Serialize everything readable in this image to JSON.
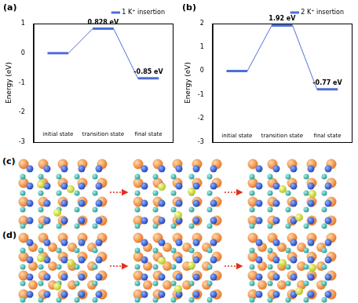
{
  "chart_data": [
    {
      "type": "line",
      "title": "(a)",
      "y_label": "Energy (eV)",
      "x": [
        0.4,
        1.0,
        1.7,
        2.3,
        3.0,
        3.6
      ],
      "series": [
        {
          "name": "1 K⁺ insertion",
          "color": "#4f6fd6",
          "values": [
            0,
            0,
            0.828,
            0.828,
            -0.85,
            -0.85
          ]
        }
      ],
      "xlim": [
        0,
        4
      ],
      "ylim": [
        -3,
        1
      ],
      "yticks": [
        -3,
        -2,
        -1,
        0,
        1
      ],
      "grid": false,
      "legend": "top right",
      "tick_labels": "y",
      "annotations": [
        {
          "text": "0.828 eV",
          "x": 2.0,
          "y": 0.828
        },
        {
          "text": "-0.85 eV",
          "x": 3.3,
          "y": -0.85
        },
        {
          "text": "initial state",
          "x": 0.7,
          "y": -2.75
        },
        {
          "text": "transition state",
          "x": 2.0,
          "y": -2.75
        },
        {
          "text": "final state",
          "x": 3.3,
          "y": -2.75
        }
      ]
    },
    {
      "type": "line",
      "title": "(b)",
      "y_label": "Energy (eV)",
      "x": [
        0.4,
        1.0,
        1.7,
        2.3,
        3.0,
        3.6
      ],
      "series": [
        {
          "name": "2 K⁺ insertion",
          "color": "#4f6fd6",
          "values": [
            0,
            0,
            1.92,
            1.92,
            -0.77,
            -0.77
          ]
        }
      ],
      "xlim": [
        0,
        4
      ],
      "ylim": [
        -3,
        2
      ],
      "yticks": [
        -3,
        -2,
        -1,
        0,
        1,
        2
      ],
      "grid": false,
      "legend": "top right",
      "tick_labels": "y",
      "annotations": [
        {
          "text": "1.92 eV",
          "x": 2.0,
          "y": 1.92
        },
        {
          "text": "-0.77 eV",
          "x": 3.3,
          "y": -0.77
        },
        {
          "text": "initial state",
          "x": 0.7,
          "y": -2.75
        },
        {
          "text": "transition state",
          "x": 2.0,
          "y": -2.75
        },
        {
          "text": "final state",
          "x": 3.3,
          "y": -2.75
        }
      ]
    }
  ],
  "panels": [
    {
      "label": "(c)"
    },
    {
      "label": "(d)"
    }
  ]
}
